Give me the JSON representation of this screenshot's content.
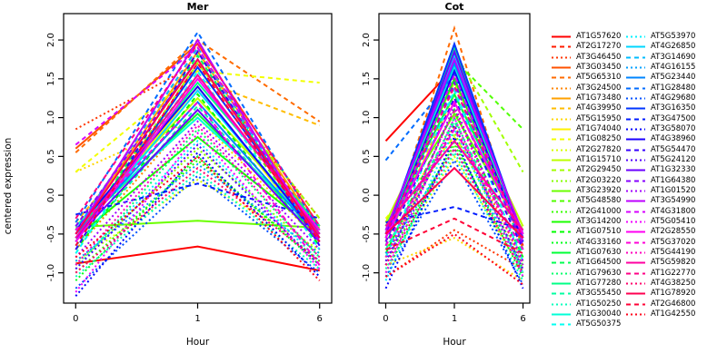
{
  "chart_data": {
    "type": "line",
    "xlabel": "Hour",
    "ylabel": "centered expression",
    "x_categories": [
      "0",
      "1",
      "6"
    ],
    "ytick_labels": [
      "-1.0",
      "-0.5",
      "0.0",
      "0.5",
      "1.0",
      "1.5",
      "2.0"
    ],
    "yticks": [
      -1.0,
      -0.5,
      0.0,
      0.5,
      1.0,
      1.5,
      2.0
    ],
    "ylim": [
      -1.39,
      2.34
    ],
    "grid": false,
    "legend_position": "right",
    "panels": [
      {
        "title": "Mer",
        "data_key": "mer"
      },
      {
        "title": "Cot",
        "data_key": "cot"
      }
    ],
    "genes": [
      {
        "id": "AT1G57620",
        "color": "#FF0000",
        "linetype": "solid",
        "mer": [
          -0.88,
          -0.66,
          -0.97
        ],
        "cot": [
          0.7,
          1.65,
          -0.65
        ]
      },
      {
        "id": "AT2G17270",
        "color": "#FF1B00",
        "linetype": "dashed",
        "mer": [
          -0.45,
          1.9,
          -0.5
        ],
        "cot": [
          -0.55,
          1.7,
          -0.6
        ]
      },
      {
        "id": "AT3G46450",
        "color": "#FF3600",
        "linetype": "dotted",
        "mer": [
          0.85,
          1.7,
          -0.3
        ],
        "cot": [
          -1.05,
          -0.45,
          -0.95
        ]
      },
      {
        "id": "AT3G03450",
        "color": "#FF5100",
        "linetype": "solid",
        "mer": [
          0.6,
          1.95,
          -0.4
        ],
        "cot": [
          -0.5,
          1.9,
          -0.55
        ]
      },
      {
        "id": "AT5G65310",
        "color": "#FF6B00",
        "linetype": "dashed",
        "mer": [
          0.55,
          2.0,
          0.95
        ],
        "cot": [
          -0.6,
          2.15,
          -0.7
        ]
      },
      {
        "id": "AT3G24500",
        "color": "#FF8600",
        "linetype": "dotted",
        "mer": [
          -0.7,
          1.1,
          -0.6
        ],
        "cot": [
          -0.8,
          0.9,
          -0.85
        ]
      },
      {
        "id": "AT1G73480",
        "color": "#FFA100",
        "linetype": "solid",
        "mer": [
          -0.5,
          1.85,
          -0.45
        ],
        "cot": [
          -0.45,
          1.6,
          -0.5
        ]
      },
      {
        "id": "AT4G39950",
        "color": "#FFBC00",
        "linetype": "dashed",
        "mer": [
          -0.35,
          1.5,
          0.9
        ],
        "cot": [
          -0.6,
          1.3,
          -0.4
        ]
      },
      {
        "id": "AT5G15950",
        "color": "#FFD700",
        "linetype": "dotted",
        "mer": [
          0.3,
          1.0,
          -0.6
        ],
        "cot": [
          -0.9,
          -0.55,
          -1.1
        ]
      },
      {
        "id": "AT1G74040",
        "color": "#FFF200",
        "linetype": "solid",
        "mer": [
          -0.55,
          1.4,
          -0.6
        ],
        "cot": [
          -0.5,
          1.2,
          -0.55
        ]
      },
      {
        "id": "AT1G08250",
        "color": "#F2FF00",
        "linetype": "dashed",
        "mer": [
          0.3,
          1.6,
          1.45
        ],
        "cot": [
          -0.3,
          0.75,
          -0.5
        ]
      },
      {
        "id": "AT2G27820",
        "color": "#D7FF00",
        "linetype": "dotted",
        "mer": [
          -0.85,
          0.2,
          -0.7
        ],
        "cot": [
          -0.95,
          0.5,
          -1.0
        ]
      },
      {
        "id": "AT1G15710",
        "color": "#BCFF00",
        "linetype": "solid",
        "mer": [
          -0.4,
          1.25,
          -0.45
        ],
        "cot": [
          -0.35,
          1.45,
          -0.4
        ]
      },
      {
        "id": "AT2G29450",
        "color": "#A1FF00",
        "linetype": "dashed",
        "mer": [
          -0.6,
          1.7,
          -0.3
        ],
        "cot": [
          -0.55,
          1.85,
          0.3
        ]
      },
      {
        "id": "AT2G03220",
        "color": "#86FF00",
        "linetype": "dotted",
        "mer": [
          -0.9,
          0.6,
          -0.75
        ],
        "cot": [
          -0.7,
          0.8,
          -0.9
        ]
      },
      {
        "id": "AT3G23920",
        "color": "#6BFF00",
        "linetype": "solid",
        "mer": [
          -0.41,
          -0.33,
          -0.42
        ],
        "cot": [
          -0.4,
          1.05,
          -0.45
        ]
      },
      {
        "id": "AT5G48580",
        "color": "#51FF00",
        "linetype": "dashed",
        "mer": [
          -0.5,
          1.55,
          -0.55
        ],
        "cot": [
          -0.6,
          1.75,
          0.85
        ]
      },
      {
        "id": "AT2G41000",
        "color": "#36FF00",
        "linetype": "dotted",
        "mer": [
          -1.0,
          0.45,
          -0.85
        ],
        "cot": [
          -0.85,
          0.65,
          -0.95
        ]
      },
      {
        "id": "AT3G14200",
        "color": "#1BFF00",
        "linetype": "solid",
        "mer": [
          -0.55,
          0.75,
          -0.5
        ],
        "cot": [
          -0.5,
          1.5,
          -0.55
        ]
      },
      {
        "id": "AT1G07510",
        "color": "#00FF00",
        "linetype": "dashed",
        "mer": [
          -0.7,
          1.3,
          -0.65
        ],
        "cot": [
          -0.75,
          1.1,
          -0.8
        ]
      },
      {
        "id": "AT4G33160",
        "color": "#00FF1B",
        "linetype": "dotted",
        "mer": [
          -1.1,
          0.5,
          -0.9
        ],
        "cot": [
          -1.0,
          0.7,
          -1.05
        ]
      },
      {
        "id": "AT1G07630",
        "color": "#00FF36",
        "linetype": "solid",
        "mer": [
          -0.45,
          1.05,
          -0.5
        ],
        "cot": [
          -0.4,
          1.3,
          -0.5
        ]
      },
      {
        "id": "AT1G64500",
        "color": "#00FF51",
        "linetype": "dashed",
        "mer": [
          -0.6,
          1.8,
          -0.55
        ],
        "cot": [
          -0.65,
          1.55,
          -0.7
        ]
      },
      {
        "id": "AT1G79630",
        "color": "#00FF6B",
        "linetype": "dotted",
        "mer": [
          -0.95,
          0.85,
          -0.8
        ],
        "cot": [
          -0.9,
          1.0,
          -1.0
        ]
      },
      {
        "id": "AT1G77280",
        "color": "#00FF86",
        "linetype": "solid",
        "mer": [
          -0.5,
          1.45,
          -0.4
        ],
        "cot": [
          -0.55,
          1.9,
          -0.6
        ]
      },
      {
        "id": "AT3G55450",
        "color": "#00FFA1",
        "linetype": "dashed",
        "mer": [
          -0.65,
          1.15,
          -0.6
        ],
        "cot": [
          -0.7,
          0.95,
          -0.75
        ]
      },
      {
        "id": "AT1G50250",
        "color": "#00FFBC",
        "linetype": "dotted",
        "mer": [
          -1.05,
          0.3,
          -0.95
        ],
        "cot": [
          -0.95,
          0.55,
          -1.1
        ]
      },
      {
        "id": "AT1G30040",
        "color": "#00FFD7",
        "linetype": "solid",
        "mer": [
          -0.4,
          1.0,
          -0.45
        ],
        "cot": [
          -0.45,
          1.65,
          -0.5
        ]
      },
      {
        "id": "AT5G50375",
        "color": "#00FFF2",
        "linetype": "dashed",
        "mer": [
          -0.75,
          1.6,
          -0.7
        ],
        "cot": [
          -0.8,
          1.35,
          -0.85
        ]
      },
      {
        "id": "AT5G53970",
        "color": "#00F2FF",
        "linetype": "dotted",
        "mer": [
          -0.9,
          0.7,
          -0.85
        ],
        "cot": [
          -1.1,
          0.85,
          -1.0
        ]
      },
      {
        "id": "AT4G26850",
        "color": "#00D7FF",
        "linetype": "solid",
        "mer": [
          -0.55,
          1.35,
          -0.5
        ],
        "cot": [
          -0.5,
          1.8,
          -0.55
        ]
      },
      {
        "id": "AT3G14690",
        "color": "#00BCFF",
        "linetype": "dashed",
        "mer": [
          -0.45,
          1.9,
          -0.6
        ],
        "cot": [
          -0.6,
          1.4,
          -0.65
        ]
      },
      {
        "id": "AT4G16155",
        "color": "#00A1FF",
        "linetype": "dotted",
        "mer": [
          -0.85,
          0.4,
          -0.75
        ],
        "cot": [
          -0.75,
          0.6,
          -0.9
        ]
      },
      {
        "id": "AT5G23440",
        "color": "#0086FF",
        "linetype": "solid",
        "mer": [
          -0.5,
          1.2,
          -0.55
        ],
        "cot": [
          -0.45,
          1.7,
          -0.5
        ]
      },
      {
        "id": "AT1G28480",
        "color": "#006BFF",
        "linetype": "dashed",
        "mer": [
          -0.35,
          2.1,
          -0.45
        ],
        "cot": [
          0.45,
          1.55,
          -0.55
        ]
      },
      {
        "id": "AT4G29680",
        "color": "#0051FF",
        "linetype": "dotted",
        "mer": [
          -1.2,
          0.25,
          -1.0
        ],
        "cot": [
          -1.05,
          0.45,
          -1.15
        ]
      },
      {
        "id": "AT3G16350",
        "color": "#0036FF",
        "linetype": "solid",
        "mer": [
          -0.6,
          1.65,
          -0.5
        ],
        "cot": [
          -0.5,
          1.95,
          -0.55
        ]
      },
      {
        "id": "AT3G47500",
        "color": "#001BFF",
        "linetype": "dashed",
        "mer": [
          -0.25,
          0.15,
          -0.3
        ],
        "cot": [
          -0.35,
          -0.15,
          -0.45
        ]
      },
      {
        "id": "AT3G58070",
        "color": "#0000FF",
        "linetype": "dotted",
        "mer": [
          -1.3,
          0.55,
          -1.05
        ],
        "cot": [
          -1.2,
          0.75,
          -1.2
        ]
      },
      {
        "id": "AT4G38960",
        "color": "#1B00FF",
        "linetype": "solid",
        "mer": [
          -0.45,
          1.4,
          -0.55
        ],
        "cot": [
          -0.55,
          1.6,
          -0.6
        ]
      },
      {
        "id": "AT5G54470",
        "color": "#3600FF",
        "linetype": "dashed",
        "mer": [
          -0.7,
          1.85,
          -0.65
        ],
        "cot": [
          -0.65,
          1.25,
          -0.7
        ]
      },
      {
        "id": "AT5G24120",
        "color": "#5100FF",
        "linetype": "dotted",
        "mer": [
          -0.95,
          0.65,
          -0.9
        ],
        "cot": [
          -0.85,
          0.9,
          -0.95
        ]
      },
      {
        "id": "AT1G32330",
        "color": "#6B00FF",
        "linetype": "solid",
        "mer": [
          -0.55,
          1.1,
          -0.6
        ],
        "cot": [
          -0.5,
          1.85,
          -0.55
        ]
      },
      {
        "id": "AT1G64380",
        "color": "#8600FF",
        "linetype": "dashed",
        "mer": [
          -0.4,
          1.75,
          -0.5
        ],
        "cot": [
          -0.6,
          1.45,
          -0.65
        ]
      },
      {
        "id": "AT1G01520",
        "color": "#A100FF",
        "linetype": "dotted",
        "mer": [
          -0.8,
          0.95,
          -0.7
        ],
        "cot": [
          -0.9,
          1.15,
          -0.85
        ]
      },
      {
        "id": "AT3G54990",
        "color": "#BC00FF",
        "linetype": "solid",
        "mer": [
          -0.5,
          2.0,
          -0.6
        ],
        "cot": [
          -0.45,
          1.75,
          -0.5
        ]
      },
      {
        "id": "AT4G31800",
        "color": "#D700FF",
        "linetype": "dashed",
        "mer": [
          0.65,
          1.9,
          -0.55
        ],
        "cot": [
          -0.55,
          1.55,
          -0.6
        ]
      },
      {
        "id": "AT5G05410",
        "color": "#F200FF",
        "linetype": "dotted",
        "mer": [
          -1.25,
          0.8,
          -0.95
        ],
        "cot": [
          -1.0,
          1.0,
          -1.05
        ]
      },
      {
        "id": "AT2G28550",
        "color": "#FF00F2",
        "linetype": "solid",
        "mer": [
          -0.6,
          1.5,
          -0.45
        ],
        "cot": [
          -0.55,
          1.2,
          -0.5
        ]
      },
      {
        "id": "AT5G37020",
        "color": "#FF00D7",
        "linetype": "dashed",
        "mer": [
          -0.45,
          1.2,
          -0.9
        ],
        "cot": [
          -0.65,
          0.85,
          -0.7
        ]
      },
      {
        "id": "AT5G44190",
        "color": "#FF00BC",
        "linetype": "dotted",
        "mer": [
          -0.9,
          0.9,
          -0.8
        ],
        "cot": [
          -0.8,
          1.1,
          -0.9
        ]
      },
      {
        "id": "AT5G59820",
        "color": "#FF00A1",
        "linetype": "solid",
        "mer": [
          -0.55,
          1.55,
          -0.5
        ],
        "cot": [
          -0.4,
          0.7,
          -0.45
        ]
      },
      {
        "id": "AT1G22770",
        "color": "#FF0086",
        "linetype": "dashed",
        "mer": [
          -0.3,
          1.95,
          -0.4
        ],
        "cot": [
          -0.5,
          1.4,
          -0.55
        ]
      },
      {
        "id": "AT4G38250",
        "color": "#FF006B",
        "linetype": "dotted",
        "mer": [
          -1.0,
          0.35,
          -0.85
        ],
        "cot": [
          -0.9,
          0.6,
          -1.0
        ]
      },
      {
        "id": "AT1G78920",
        "color": "#FF0051",
        "linetype": "solid",
        "mer": [
          -0.5,
          1.75,
          -0.55
        ],
        "cot": [
          -0.5,
          0.35,
          -0.55
        ]
      },
      {
        "id": "AT2G46800",
        "color": "#FF0036",
        "linetype": "dashed",
        "mer": [
          -0.65,
          1.7,
          -0.6
        ],
        "cot": [
          -0.7,
          -0.3,
          -0.75
        ]
      },
      {
        "id": "AT1G42550",
        "color": "#FF001B",
        "linetype": "dotted",
        "mer": [
          -0.8,
          0.5,
          -1.1
        ],
        "cot": [
          -1.05,
          -0.5,
          -1.15
        ]
      }
    ]
  }
}
